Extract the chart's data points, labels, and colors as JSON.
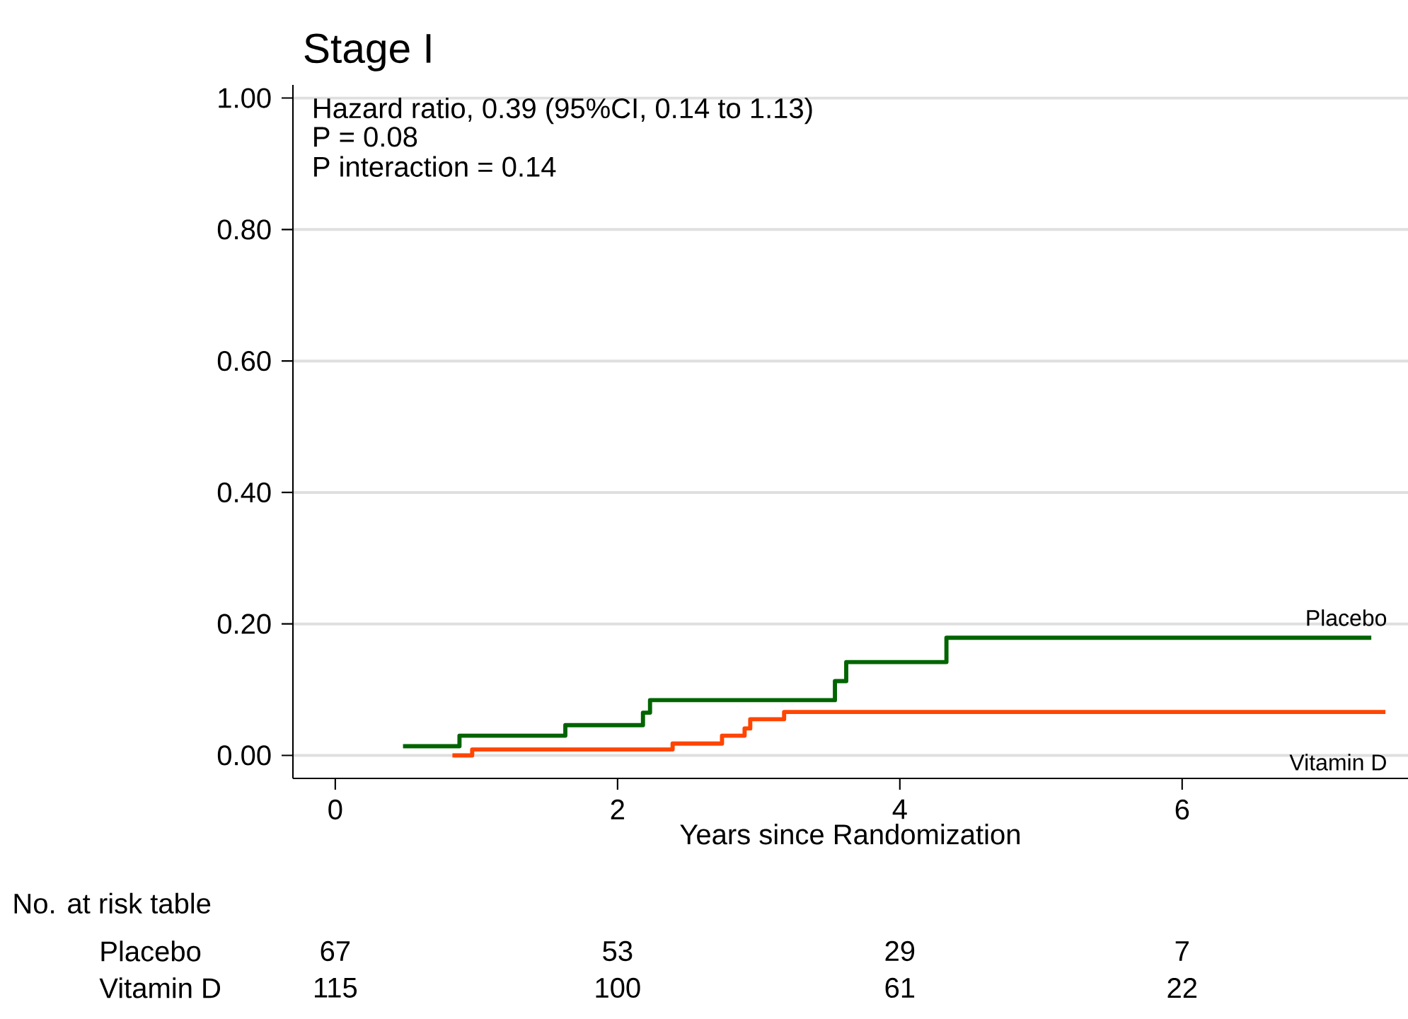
{
  "chart_data": {
    "type": "step",
    "title": "Stage I",
    "xlabel": "Years since Randomization",
    "xlim": [
      -0.3,
      7.6
    ],
    "ylim": [
      -0.035,
      1.02
    ],
    "xticks": [
      0,
      2,
      4,
      6
    ],
    "yticks": [
      {
        "value": 0,
        "label": "0.00"
      },
      {
        "value": 0.2,
        "label": "0.20"
      },
      {
        "value": 0.4,
        "label": "0.40"
      },
      {
        "value": 0.6,
        "label": "0.60"
      },
      {
        "value": 0.8,
        "label": "0.80"
      },
      {
        "value": 1.0,
        "label": "1.00"
      }
    ],
    "grid": "y",
    "legend": false,
    "marker": "none",
    "line_style": "solid",
    "series": [
      {
        "name": "Placebo",
        "color": "#006400",
        "x": [
          0.48,
          0.88,
          1.63,
          2.18,
          2.23,
          3.54,
          3.62,
          4.33,
          7.34
        ],
        "values": [
          0.014,
          0.03,
          0.046,
          0.065,
          0.084,
          0.113,
          0.142,
          0.179,
          0.179
        ]
      },
      {
        "name": "Vitamin D",
        "color": "#ff4500",
        "x": [
          0.83,
          0.97,
          2.39,
          2.74,
          2.9,
          2.94,
          3.18,
          7.44
        ],
        "values": [
          0.0,
          0.009,
          0.018,
          0.03,
          0.041,
          0.055,
          0.066,
          0.066
        ]
      }
    ],
    "annotations": [
      "Hazard ratio, 0.39 (95%CI, 0.14 to 1.13)",
      "P = 0.08",
      "P interaction = 0.14",
      "No. at risk table",
      "Placebo",
      "67",
      "53",
      "29",
      "7",
      "Vitamin D",
      "115",
      "100",
      "61",
      "22"
    ]
  }
}
